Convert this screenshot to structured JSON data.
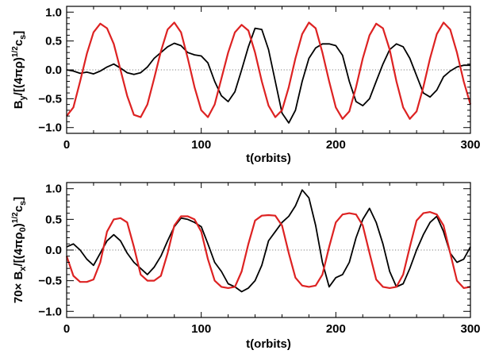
{
  "chart_data": [
    {
      "type": "line",
      "xlabel": "t(orbits)",
      "ylabel_parts": {
        "base": "B",
        "sub": "y",
        "mid": "/[(4πρ)",
        "sup": "1/2",
        "tail": "c",
        "sub2": "s",
        "end": "]"
      },
      "xlim": [
        0,
        300
      ],
      "ylim": [
        -1.1,
        1.1
      ],
      "xticks": [
        0,
        100,
        200,
        300
      ],
      "xtick_labels": [
        "0",
        "100",
        "200",
        "300"
      ],
      "yticks": [
        -1.0,
        -0.5,
        0.0,
        0.5,
        1.0
      ],
      "ytick_labels": [
        "−1.0",
        "−0.5",
        "0.0",
        "0.5",
        "1.0"
      ],
      "zero_line": true,
      "series": [
        {
          "color": "#000000",
          "x": [
            0,
            5,
            10,
            15,
            20,
            25,
            30,
            35,
            40,
            45,
            50,
            55,
            60,
            65,
            70,
            75,
            80,
            85,
            90,
            95,
            100,
            105,
            110,
            115,
            120,
            125,
            130,
            135,
            140,
            145,
            150,
            155,
            160,
            165,
            170,
            175,
            180,
            185,
            190,
            195,
            200,
            205,
            210,
            215,
            220,
            225,
            230,
            235,
            240,
            245,
            250,
            255,
            260,
            265,
            270,
            275,
            280,
            285,
            290,
            295,
            300
          ],
          "y": [
            0.0,
            -0.02,
            -0.06,
            -0.04,
            -0.07,
            -0.02,
            0.05,
            0.1,
            0.03,
            -0.05,
            -0.08,
            -0.05,
            0.05,
            0.2,
            0.3,
            0.4,
            0.46,
            0.42,
            0.3,
            0.26,
            0.24,
            0.12,
            -0.2,
            -0.45,
            -0.55,
            -0.38,
            0.0,
            0.4,
            0.72,
            0.7,
            0.35,
            -0.2,
            -0.75,
            -0.92,
            -0.7,
            -0.2,
            0.2,
            0.38,
            0.45,
            0.45,
            0.42,
            0.25,
            -0.2,
            -0.55,
            -0.62,
            -0.5,
            -0.2,
            0.1,
            0.35,
            0.45,
            0.4,
            0.2,
            -0.1,
            -0.4,
            -0.47,
            -0.35,
            -0.12,
            -0.02,
            0.05,
            0.08,
            0.08
          ]
        },
        {
          "color": "#dd2222",
          "x": [
            0,
            5,
            10,
            15,
            20,
            25,
            30,
            35,
            40,
            45,
            50,
            55,
            60,
            65,
            70,
            75,
            80,
            85,
            90,
            95,
            100,
            105,
            110,
            115,
            120,
            125,
            130,
            135,
            140,
            145,
            150,
            155,
            160,
            165,
            170,
            175,
            180,
            185,
            190,
            195,
            200,
            205,
            210,
            215,
            220,
            225,
            230,
            235,
            240,
            245,
            250,
            255,
            260,
            265,
            270,
            275,
            280,
            285,
            290,
            295,
            300
          ],
          "y": [
            -0.8,
            -0.65,
            -0.2,
            0.28,
            0.65,
            0.8,
            0.72,
            0.45,
            0.0,
            -0.45,
            -0.78,
            -0.82,
            -0.6,
            -0.15,
            0.32,
            0.7,
            0.82,
            0.65,
            0.2,
            -0.3,
            -0.7,
            -0.82,
            -0.6,
            -0.15,
            0.3,
            0.65,
            0.78,
            0.68,
            0.3,
            -0.2,
            -0.62,
            -0.82,
            -0.7,
            -0.3,
            0.2,
            0.62,
            0.82,
            0.72,
            0.3,
            -0.2,
            -0.65,
            -0.85,
            -0.72,
            -0.3,
            0.2,
            0.6,
            0.8,
            0.72,
            0.35,
            -0.2,
            -0.65,
            -0.85,
            -0.72,
            -0.3,
            0.2,
            0.62,
            0.82,
            0.7,
            0.3,
            -0.2,
            -0.6
          ]
        }
      ]
    },
    {
      "type": "line",
      "xlabel": "t(orbits)",
      "ylabel_parts": {
        "base": "70× B",
        "sub": "x",
        "mid": "/[(4πρ",
        "sub3": "0",
        "mid2": ")",
        "sup": "1/2",
        "tail": "c",
        "sub2": "s",
        "end": "]"
      },
      "xlim": [
        0,
        300
      ],
      "ylim": [
        -1.1,
        1.1
      ],
      "xticks": [
        0,
        100,
        200,
        300
      ],
      "xtick_labels": [
        "0",
        "100",
        "200",
        "300"
      ],
      "yticks": [
        -1.0,
        -0.5,
        0.0,
        0.5,
        1.0
      ],
      "ytick_labels": [
        "−1.0",
        "−0.5",
        "0.0",
        "0.5",
        "1.0"
      ],
      "zero_line": true,
      "series": [
        {
          "color": "#000000",
          "x": [
            0,
            5,
            10,
            15,
            20,
            25,
            30,
            35,
            40,
            45,
            50,
            55,
            60,
            65,
            70,
            75,
            80,
            85,
            90,
            95,
            100,
            105,
            110,
            115,
            120,
            125,
            130,
            135,
            140,
            145,
            150,
            155,
            160,
            165,
            170,
            175,
            180,
            185,
            190,
            195,
            200,
            205,
            210,
            215,
            220,
            225,
            230,
            235,
            240,
            245,
            250,
            255,
            260,
            265,
            270,
            275,
            280,
            285,
            290,
            295,
            300
          ],
          "y": [
            0.05,
            0.1,
            0.0,
            -0.15,
            -0.25,
            -0.05,
            0.15,
            0.25,
            0.15,
            -0.05,
            -0.2,
            -0.3,
            -0.4,
            -0.28,
            -0.1,
            0.15,
            0.38,
            0.52,
            0.5,
            0.45,
            0.38,
            0.1,
            -0.2,
            -0.35,
            -0.55,
            -0.6,
            -0.68,
            -0.62,
            -0.5,
            -0.25,
            0.15,
            0.3,
            0.45,
            0.55,
            0.72,
            0.98,
            0.85,
            0.4,
            -0.2,
            -0.6,
            -0.45,
            -0.4,
            -0.2,
            0.2,
            0.5,
            0.68,
            0.45,
            0.1,
            -0.35,
            -0.6,
            -0.55,
            -0.3,
            0.0,
            0.25,
            0.45,
            0.55,
            0.3,
            -0.05,
            -0.2,
            -0.15,
            0.05
          ]
        },
        {
          "color": "#dd2222",
          "x": [
            0,
            5,
            10,
            15,
            20,
            25,
            30,
            35,
            40,
            45,
            50,
            55,
            60,
            65,
            70,
            75,
            80,
            85,
            90,
            95,
            100,
            105,
            110,
            115,
            120,
            125,
            130,
            135,
            140,
            145,
            150,
            155,
            160,
            165,
            170,
            175,
            180,
            185,
            190,
            195,
            200,
            205,
            210,
            215,
            220,
            225,
            230,
            235,
            240,
            245,
            250,
            255,
            260,
            265,
            270,
            275,
            280,
            285,
            290,
            295,
            300
          ],
          "y": [
            -0.1,
            -0.42,
            -0.52,
            -0.52,
            -0.48,
            -0.2,
            0.3,
            0.5,
            0.52,
            0.45,
            0.05,
            -0.4,
            -0.5,
            -0.5,
            -0.42,
            -0.05,
            0.4,
            0.55,
            0.55,
            0.5,
            0.3,
            -0.15,
            -0.5,
            -0.6,
            -0.62,
            -0.6,
            -0.35,
            0.1,
            0.48,
            0.56,
            0.57,
            0.56,
            0.4,
            -0.05,
            -0.45,
            -0.58,
            -0.6,
            -0.58,
            -0.4,
            0.05,
            0.45,
            0.58,
            0.6,
            0.58,
            0.4,
            -0.05,
            -0.48,
            -0.6,
            -0.62,
            -0.6,
            -0.4,
            0.05,
            0.48,
            0.6,
            0.62,
            0.58,
            0.4,
            -0.05,
            -0.5,
            -0.62,
            -0.6
          ]
        }
      ]
    }
  ]
}
